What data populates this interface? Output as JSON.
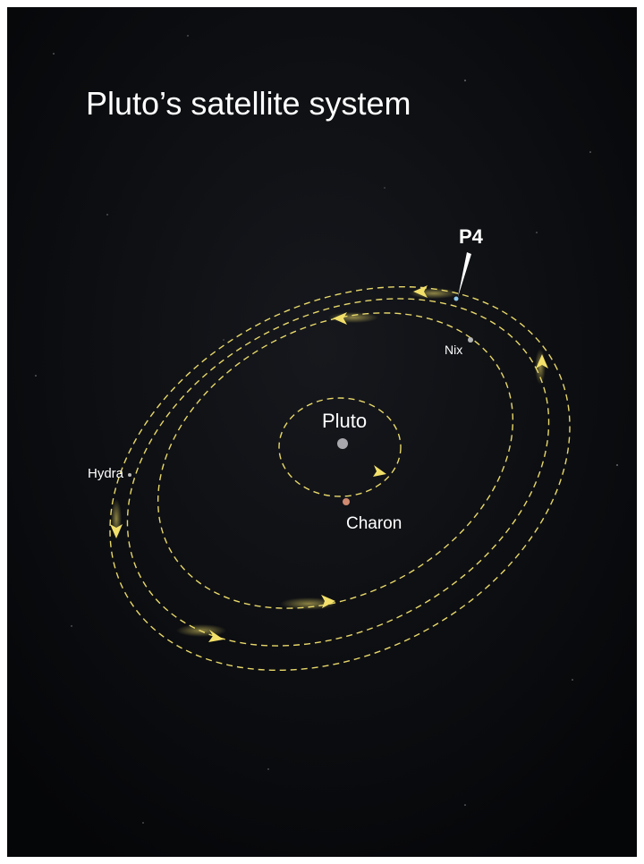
{
  "title": "Pluto’s satellite system",
  "bodies": [
    {
      "label": "P4"
    },
    {
      "label": "Nix"
    },
    {
      "label": "Pluto"
    },
    {
      "label": "Hydra"
    },
    {
      "label": "Charon"
    }
  ]
}
